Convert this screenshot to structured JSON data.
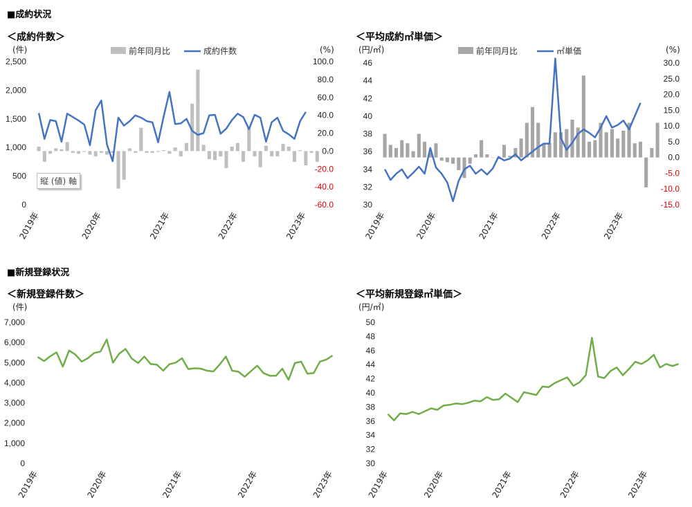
{
  "sections": {
    "contract": "■成約状況",
    "registration": "■新規登録状況"
  },
  "charts": {
    "contract_count": {
      "title": "＜成約件数＞",
      "left_unit": "(件)",
      "right_unit": "(%)",
      "legend_bar": "前年同月比",
      "legend_line": "成約件数",
      "axis_box": "縦 (値) 軸"
    },
    "contract_price": {
      "title": "＜平均成約㎡単価＞",
      "left_unit": "(円/㎡)",
      "right_unit": "(%)",
      "legend_bar": "前年同月比",
      "legend_line": "㎡単価"
    },
    "reg_count": {
      "title": "＜新規登録件数＞",
      "left_unit": "(件)"
    },
    "reg_price": {
      "title": "＜平均新規登録㎡単価＞",
      "left_unit": "(円/㎡)"
    }
  },
  "colors": {
    "line_blue": "#4472c4",
    "bar_gray_light": "#bfbfbf",
    "bar_gray_dark": "#a6a6a6",
    "line_green": "#70ad47",
    "negative_tick": "#e00000"
  },
  "chart_data": [
    {
      "type": "bar+line",
      "title": "＜成約件数＞",
      "x_labels": [
        "2019年",
        "2020年",
        "2021年",
        "2022年",
        "2023年"
      ],
      "ylim_left": [
        0,
        2500
      ],
      "yticks_left": [
        "0",
        "500",
        "1,000",
        "1,500",
        "2,000",
        "2,500"
      ],
      "ylim_right": [
        -60,
        100
      ],
      "yticks_right": [
        "-60.0",
        "-40.0",
        "-20.0",
        "0.0",
        "20.0",
        "40.0",
        "60.0",
        "80.0",
        "100.0"
      ],
      "series": [
        {
          "name": "前年同月比",
          "kind": "bar",
          "axis": "right",
          "values": [
            5,
            -12,
            -3,
            3,
            2,
            10,
            -2,
            -3,
            -1,
            -4,
            -6,
            -2,
            -4,
            -2,
            -42,
            -32,
            3,
            -2,
            26,
            -2,
            -2,
            -1,
            1,
            -3,
            4,
            -6,
            9,
            53,
            91,
            7,
            -9,
            -10,
            -6,
            -19,
            5,
            9,
            -12,
            27,
            -6,
            -18,
            6,
            -6,
            -6,
            8,
            5,
            -12,
            1,
            -16,
            -2,
            -12,
            0,
            -2
          ]
        },
        {
          "name": "成約件数",
          "kind": "line",
          "axis": "left",
          "values": [
            1600,
            1150,
            1480,
            1460,
            1100,
            1590,
            1530,
            1470,
            1400,
            1040,
            1650,
            1820,
            1050,
            760,
            1520,
            1380,
            1460,
            1560,
            1520,
            1460,
            1440,
            1090,
            1550,
            1970,
            1410,
            1420,
            1500,
            1290,
            1220,
            1250,
            1560,
            1570,
            1240,
            1330,
            1480,
            1590,
            1530,
            1320,
            1570,
            1520,
            1100,
            1440,
            1520,
            1290,
            1230,
            1150,
            1460,
            1620
          ]
        }
      ]
    },
    {
      "type": "bar+line",
      "title": "＜平均成約㎡単価＞",
      "x_labels": [
        "2019年",
        "2020年",
        "2021年",
        "2022年",
        "2023年"
      ],
      "ylim_left": [
        30,
        46
      ],
      "yticks_left": [
        "30",
        "32",
        "34",
        "36",
        "38",
        "40",
        "42",
        "44",
        "46"
      ],
      "ylim_right": [
        -15,
        30
      ],
      "yticks_right": [
        "-15.0",
        "-10.0",
        "-5.0",
        "0.0",
        "5.0",
        "10.0",
        "15.0",
        "20.0",
        "25.0",
        "30.0"
      ],
      "series": [
        {
          "name": "前年同月比",
          "kind": "bar",
          "axis": "right",
          "values": [
            7.5,
            4,
            3,
            5.5,
            4.5,
            2,
            7.5,
            5,
            1.5,
            4.5,
            -1,
            -1.5,
            -2,
            -4,
            -6.5,
            -2,
            1,
            5.5,
            1,
            0,
            -0.5,
            4,
            0.5,
            3,
            6,
            11,
            16,
            11,
            4.5,
            4.5,
            8,
            8,
            9,
            12,
            9.5,
            26,
            5,
            5.5,
            11,
            8,
            9,
            6,
            8.5,
            11,
            4.5,
            5,
            -9.5,
            3,
            11
          ]
        },
        {
          "name": "㎡単価",
          "kind": "line",
          "axis": "left",
          "values": [
            34,
            32.8,
            33.5,
            34,
            33,
            33.6,
            34.3,
            33.5,
            36.4,
            34.2,
            33.5,
            32.5,
            30.4,
            32.7,
            34,
            34.4,
            33.5,
            34,
            33.4,
            34.1,
            35.4,
            35,
            35.2,
            35.7,
            35,
            35.5,
            36,
            36.5,
            36.9,
            36.9,
            46.5,
            37.5,
            36.2,
            37,
            38,
            38.5,
            38.1,
            37.6,
            38.7,
            40,
            38.7,
            39,
            39.5,
            38.5,
            40,
            41.5
          ]
        }
      ]
    },
    {
      "type": "line",
      "title": "＜新規登録件数＞",
      "x_labels": [
        "2019年",
        "2020年",
        "2021年",
        "2022年",
        "2023年"
      ],
      "ylim": [
        0,
        7000
      ],
      "yticks": [
        "0",
        "1,000",
        "2,000",
        "3,000",
        "4,000",
        "5,000",
        "6,000",
        "7,000"
      ],
      "series": [
        {
          "name": "新規登録件数",
          "values": [
            5280,
            5080,
            5320,
            5510,
            4800,
            5600,
            5400,
            5050,
            5220,
            5480,
            5550,
            6150,
            5000,
            5450,
            5680,
            5200,
            4980,
            5300,
            4930,
            4900,
            4600,
            4920,
            5000,
            5220,
            4680,
            4720,
            4700,
            4600,
            4560,
            4900,
            5300,
            4600,
            4550,
            4300,
            4580,
            4850,
            4480,
            4350,
            4350,
            4700,
            4150,
            4980,
            5050,
            4450,
            4480,
            5050,
            5150,
            5350
          ]
        }
      ]
    },
    {
      "type": "line",
      "title": "＜平均新規登録㎡単価＞",
      "x_labels": [
        "2019年",
        "2020年",
        "2021年",
        "2022年",
        "2023年"
      ],
      "ylim": [
        30,
        50
      ],
      "yticks": [
        "30",
        "32",
        "34",
        "36",
        "38",
        "40",
        "42",
        "44",
        "46",
        "48",
        "50"
      ],
      "series": [
        {
          "name": "平均新規登録㎡単価",
          "values": [
            37,
            36.1,
            37.1,
            37,
            37.3,
            37,
            37.4,
            37.8,
            37.6,
            38.2,
            38.3,
            38.5,
            38.4,
            38.6,
            38.9,
            38.8,
            39.4,
            39,
            39.1,
            39.9,
            39.3,
            38.7,
            40.1,
            39.9,
            39.7,
            40.9,
            40.8,
            41.4,
            41.8,
            42.2,
            41,
            41.5,
            42.5,
            47.8,
            42.3,
            42.1,
            43.1,
            43.6,
            42.5,
            43.4,
            44.4,
            44.1,
            44.6,
            45.4,
            43.6,
            44.1,
            43.8,
            44.1
          ]
        }
      ]
    }
  ]
}
